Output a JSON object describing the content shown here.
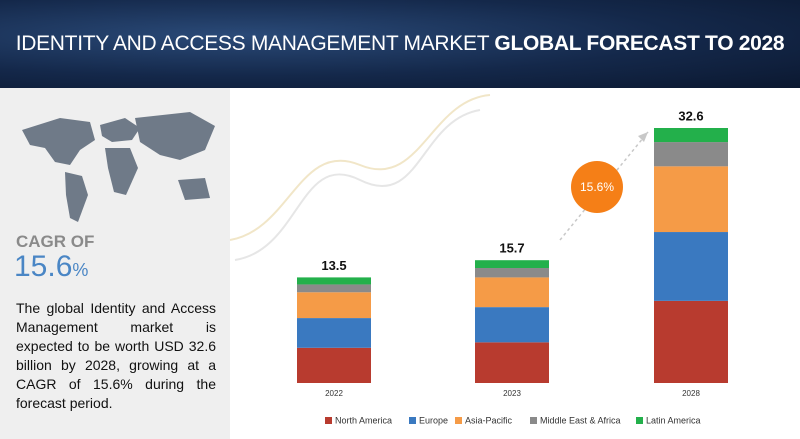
{
  "chart_data": {
    "type": "bar",
    "title": [
      "IDENTITY AND ACCESS MANAGEMENT MARKET",
      "GLOBAL FORECAST TO 2028"
    ],
    "cagr_label": "CAGR OF",
    "cagr_value": "15.6",
    "cagr_unit": "%",
    "description": "The global Identity and Access Management market is expected to be worth USD 32.6 billion by 2028, growing at a CAGR of 15.6% during the forecast period.",
    "annotation": "15.6%",
    "categories": [
      "2022",
      "2023",
      "2028"
    ],
    "totals": [
      13.5,
      15.7,
      32.6
    ],
    "stacked": true,
    "ylim": [
      0,
      32.6
    ],
    "series": [
      {
        "name": "North America",
        "color": "#b83b2f",
        "values": [
          4.5,
          5.2,
          10.5
        ]
      },
      {
        "name": "Europe",
        "color": "#3a79c0",
        "values": [
          3.8,
          4.5,
          8.8
        ]
      },
      {
        "name": "Asia-Pacific",
        "color": "#f59b47",
        "values": [
          3.3,
          3.8,
          8.4
        ]
      },
      {
        "name": "Middle East & Africa",
        "color": "#8a8a8a",
        "values": [
          1.0,
          1.2,
          3.1
        ]
      },
      {
        "name": "Latin America",
        "color": "#23b04b",
        "values": [
          0.9,
          1.0,
          1.8
        ]
      }
    ]
  }
}
